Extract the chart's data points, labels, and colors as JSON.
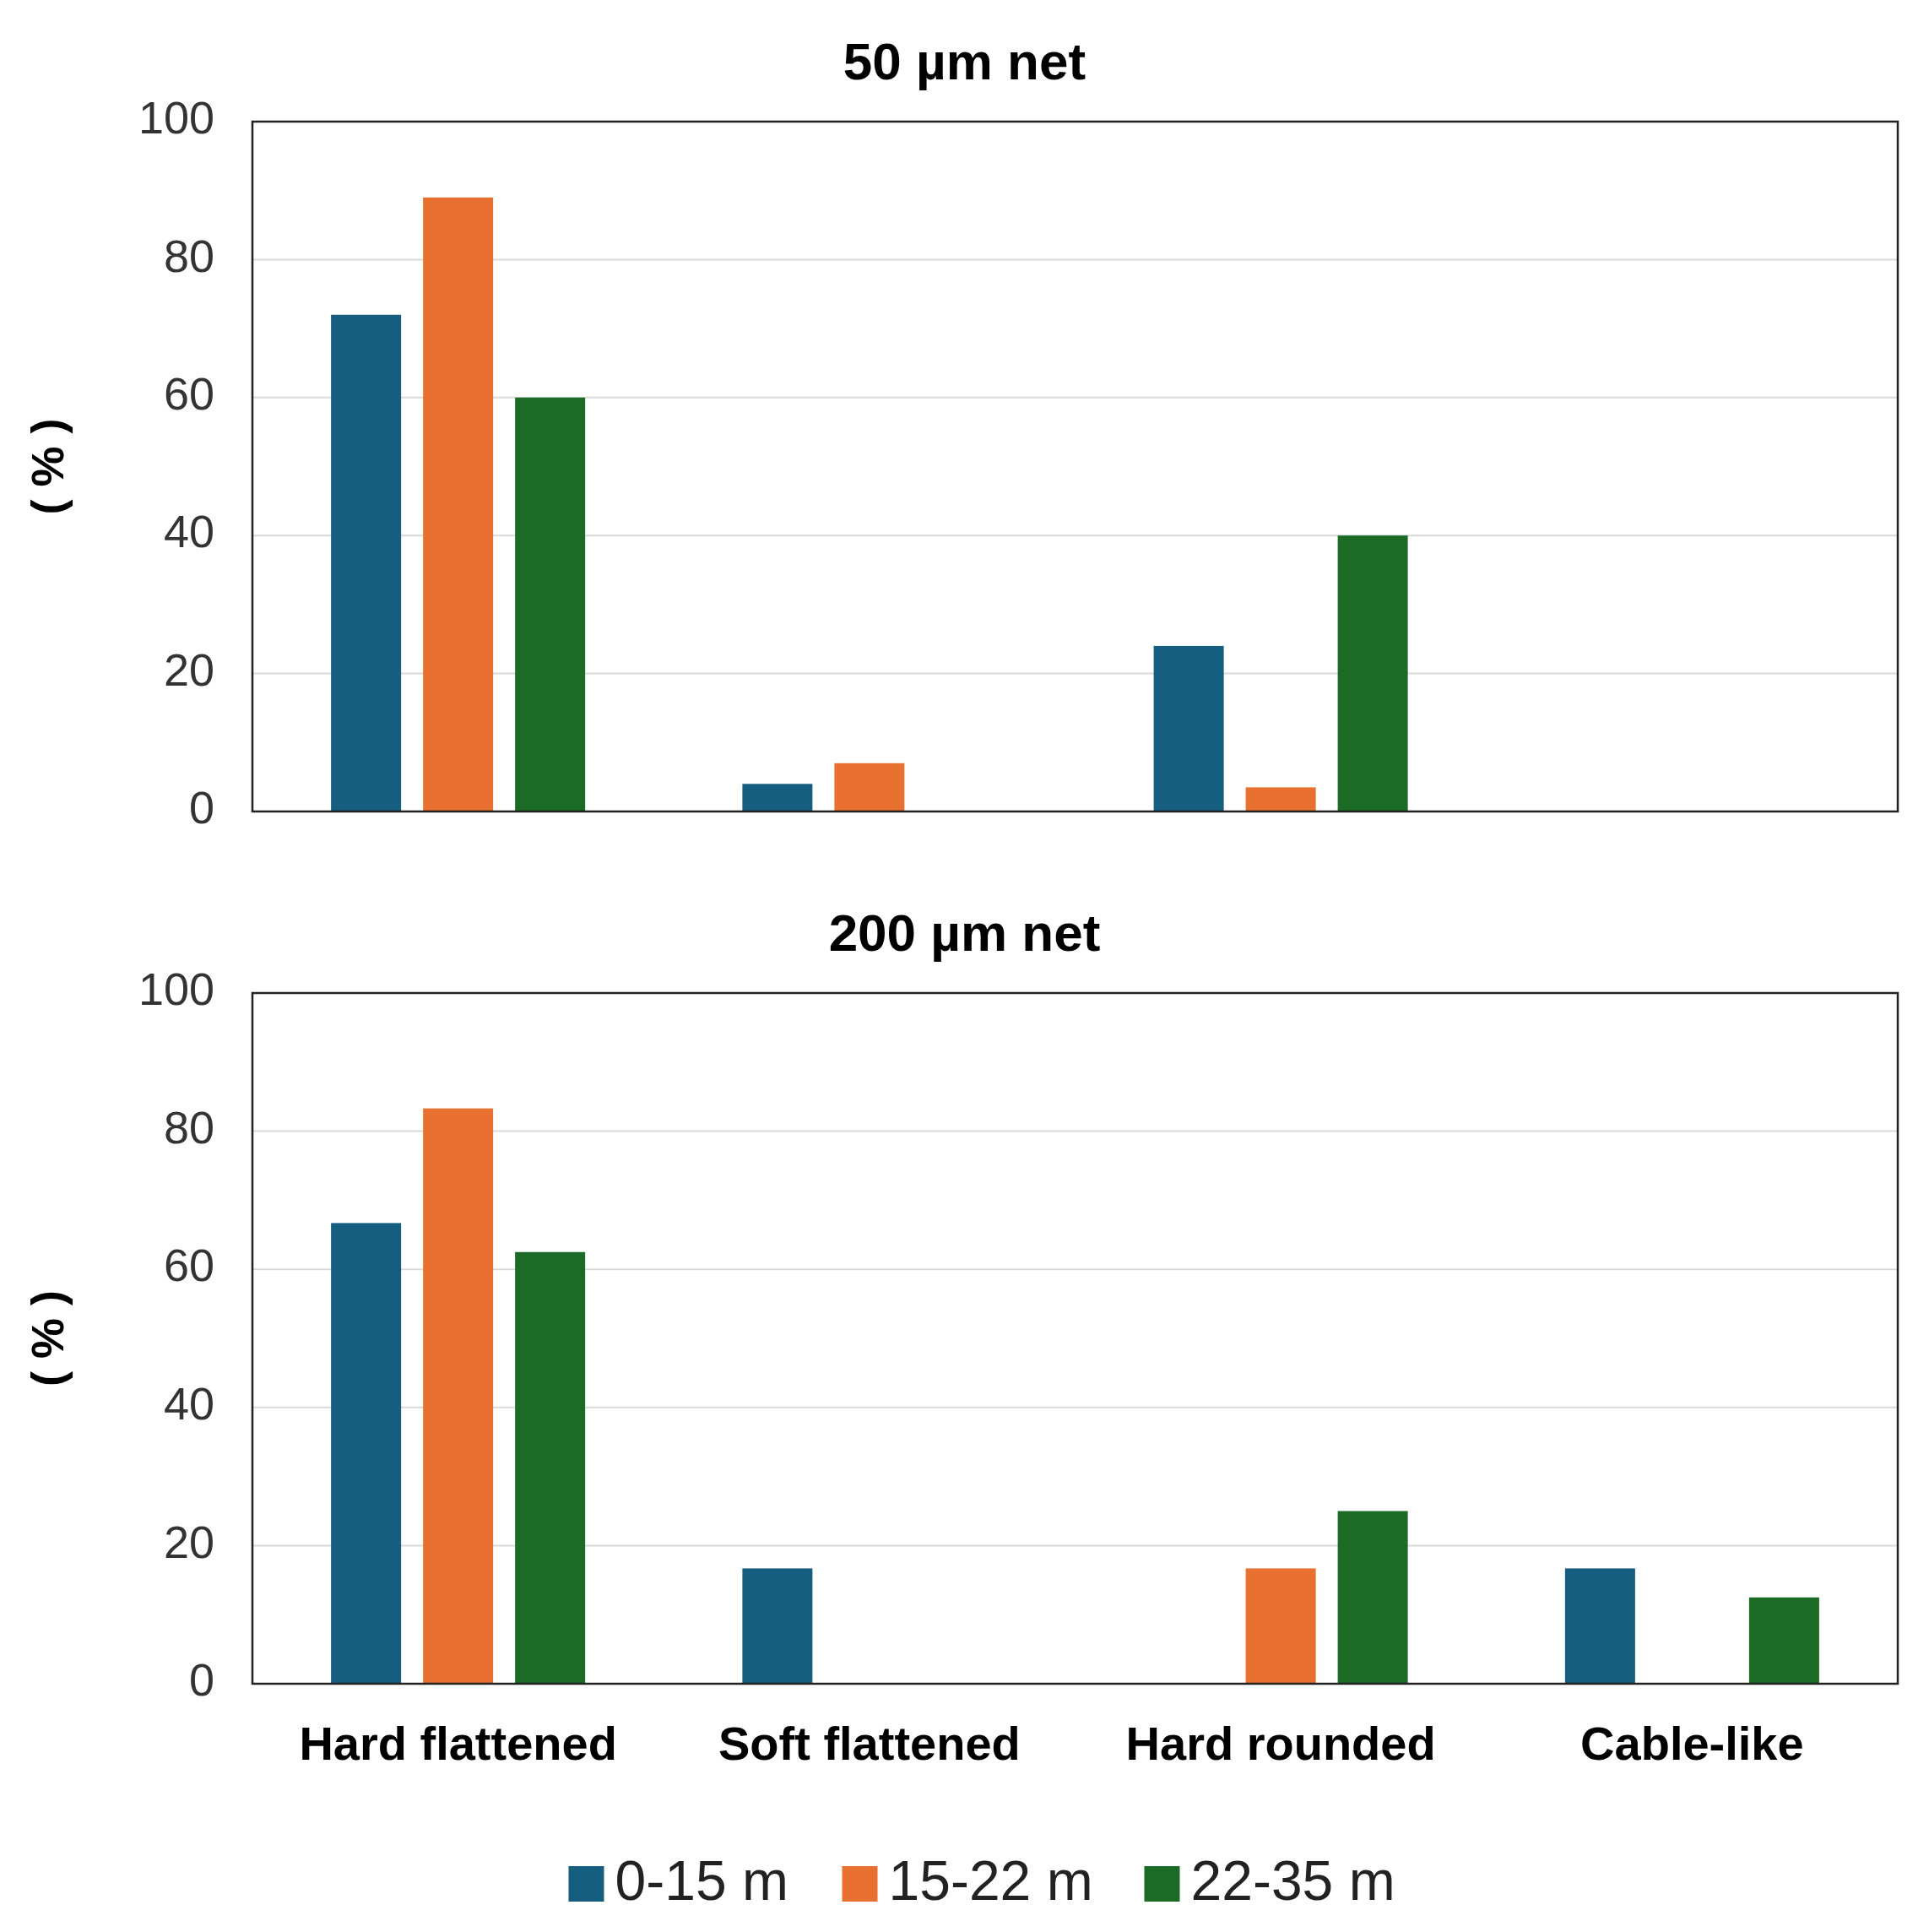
{
  "chart_data": [
    {
      "type": "bar",
      "title": "50 µm net",
      "ylabel": "( % )",
      "categories": [
        null,
        null,
        null,
        null
      ],
      "ylim": [
        0,
        100
      ],
      "yticks": [
        0,
        20,
        40,
        60,
        80,
        100
      ],
      "grid": "y",
      "tick_labels": "y",
      "series": [
        {
          "color": "#155e80",
          "values": [
            72,
            4,
            24,
            0
          ]
        },
        {
          "color": "#e87131",
          "values": [
            89,
            7,
            3.5,
            0
          ]
        },
        {
          "color": "#1b6b26",
          "values": [
            60,
            0,
            40,
            0
          ]
        }
      ]
    },
    {
      "type": "bar",
      "title": "200 µm net",
      "ylabel": "( % )",
      "categories": [
        "Hard flattened",
        "Soft flattened",
        "Hard rounded",
        "Cable-like"
      ],
      "ylim": [
        0,
        100
      ],
      "yticks": [
        0,
        20,
        40,
        60,
        80,
        100
      ],
      "grid": "y",
      "legend": "bottom",
      "series": [
        {
          "name": "0-15 m",
          "color": "#155e80",
          "values": [
            66.7,
            16.7,
            0,
            16.7
          ]
        },
        {
          "name": "15-22 m",
          "color": "#e87131",
          "values": [
            83.3,
            0,
            16.7,
            0
          ]
        },
        {
          "name": "22-35 m",
          "color": "#1b6b26",
          "values": [
            62.5,
            0,
            25,
            12.5
          ]
        }
      ]
    }
  ]
}
